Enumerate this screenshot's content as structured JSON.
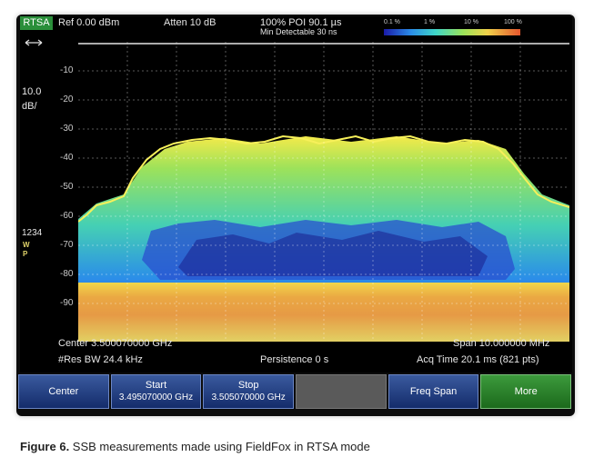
{
  "status": {
    "mode_tag": "RTSA",
    "ref": "Ref 0.00 dBm",
    "atten": "Atten 10 dB",
    "poi": "100% POI 90.1 µs",
    "min_detectable": "Min Detectable 30 ns",
    "colorbar_ticks": [
      "0.1 %",
      "1 %",
      "10 %",
      "100 %"
    ]
  },
  "left_panel": {
    "scale_value": "10.0",
    "scale_unit": "dB/",
    "trace_numbers": "1234",
    "trace_w": "W",
    "trace_p": "P"
  },
  "y_axis": {
    "labels": [
      "-10",
      "-20",
      "-30",
      "-40",
      "-50",
      "-60",
      "-70",
      "-80",
      "-90"
    ]
  },
  "info": {
    "center": "Center 3.500070000 GHz",
    "span": "Span 10.000000 MHz",
    "res_bw": "#Res BW 24.4 kHz",
    "persistence": "Persistence 0  s",
    "acq_time": "Acq Time 20.1 ms (821 pts)"
  },
  "softkeys": [
    {
      "label": "Center",
      "sub": ""
    },
    {
      "label": "Start",
      "sub": "3.495070000 GHz"
    },
    {
      "label": "Stop",
      "sub": "3.505070000 GHz"
    },
    {
      "label": "",
      "sub": ""
    },
    {
      "label": "Freq Span",
      "sub": ""
    },
    {
      "label": "More",
      "sub": ""
    }
  ],
  "caption": {
    "prefix": "Figure 6.",
    "text": " SSB measurements made using FieldFox in RTSA mode"
  },
  "colors": {
    "accent_green": "#2a8f3a",
    "softkey_blue": "#142c6b"
  }
}
